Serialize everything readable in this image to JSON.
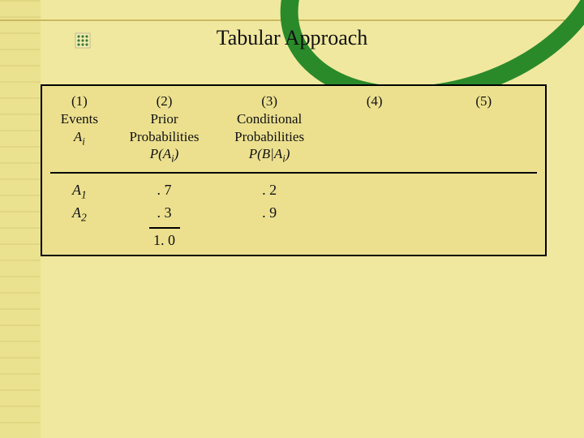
{
  "title": "Tabular Approach",
  "colors": {
    "background": "#f0e89e",
    "table_bg": "#ece08f",
    "border": "#000000",
    "arc_green": "#2a8a2a",
    "arc_gold": "#e8c040",
    "text": "#111111"
  },
  "bullet_icon": "decorative-dots",
  "table": {
    "columns": [
      {
        "num": "(1)",
        "line2": "",
        "line3": "Events",
        "sym_html": "A<sub>i</sub>"
      },
      {
        "num": "(2)",
        "line2": "Prior",
        "line3": "Probabilities",
        "sym_html": "P(A<sub>i</sub>)"
      },
      {
        "num": "(3)",
        "line2": "Conditional",
        "line3": "Probabilities",
        "sym_html": "P(B|A<sub>i</sub>)"
      },
      {
        "num": "(4)",
        "line2": "",
        "line3": "",
        "sym_html": ""
      },
      {
        "num": "(5)",
        "line2": "",
        "line3": "",
        "sym_html": ""
      }
    ],
    "rows": [
      {
        "event_html": "A<sub>1</sub>",
        "prior": ". 7",
        "cond": ". 2"
      },
      {
        "event_html": "A<sub>2</sub>",
        "prior": ". 3",
        "cond": ". 9"
      }
    ],
    "sum": "1. 0"
  }
}
